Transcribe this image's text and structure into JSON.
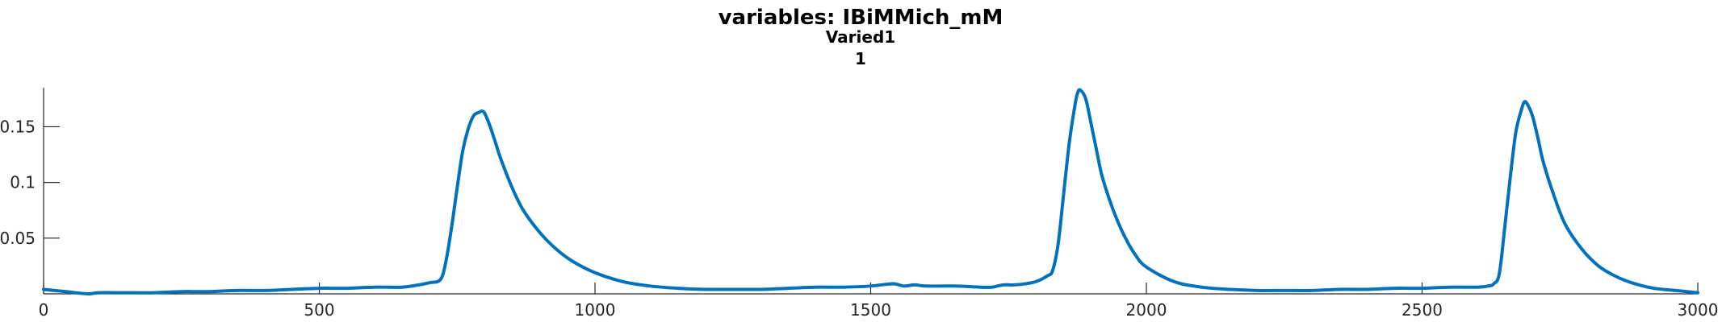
{
  "chart_data": {
    "type": "line",
    "title": "variables: IBiMMich_mM",
    "subtitle_lines": [
      "Varied1",
      "1"
    ],
    "xlabel": "",
    "ylabel": "",
    "xlim": [
      0,
      3000
    ],
    "ylim": [
      0.0,
      0.185
    ],
    "x_ticks": [
      0,
      500,
      1000,
      1500,
      2000,
      2500,
      3000
    ],
    "x_tick_labels": [
      "0",
      "500",
      "1000",
      "1500",
      "2000",
      "2500",
      "3000"
    ],
    "y_ticks": [
      0.05,
      0.1,
      0.15
    ],
    "y_tick_labels": [
      "0.05",
      "0.1",
      "0.15"
    ],
    "grid": false,
    "legend": "none",
    "series": [
      {
        "color": "#0072bd",
        "x": [
          0,
          40,
          80,
          100,
          150,
          200,
          250,
          300,
          350,
          400,
          450,
          500,
          550,
          600,
          650,
          680,
          700,
          720,
          730,
          740,
          750,
          760,
          770,
          780,
          790,
          795,
          800,
          810,
          820,
          830,
          850,
          870,
          900,
          930,
          960,
          1000,
          1050,
          1100,
          1150,
          1200,
          1250,
          1300,
          1350,
          1400,
          1450,
          1500,
          1540,
          1560,
          1580,
          1600,
          1650,
          1700,
          1720,
          1740,
          1760,
          1780,
          1800,
          1820,
          1830,
          1840,
          1850,
          1860,
          1870,
          1875,
          1880,
          1890,
          1900,
          1910,
          1920,
          1940,
          1960,
          1980,
          2000,
          2050,
          2100,
          2150,
          2200,
          2250,
          2300,
          2350,
          2400,
          2450,
          2500,
          2550,
          2600,
          2620,
          2630,
          2640,
          2650,
          2660,
          2670,
          2680,
          2685,
          2690,
          2700,
          2710,
          2720,
          2740,
          2760,
          2790,
          2820,
          2850,
          2880,
          2920,
          2960,
          3000
        ],
        "y": [
          0.004,
          0.002,
          0.0,
          0.001,
          0.001,
          0.001,
          0.002,
          0.002,
          0.003,
          0.003,
          0.004,
          0.005,
          0.005,
          0.006,
          0.006,
          0.008,
          0.01,
          0.013,
          0.03,
          0.06,
          0.095,
          0.128,
          0.148,
          0.16,
          0.163,
          0.164,
          0.162,
          0.15,
          0.135,
          0.12,
          0.095,
          0.075,
          0.055,
          0.04,
          0.029,
          0.019,
          0.011,
          0.007,
          0.005,
          0.004,
          0.004,
          0.004,
          0.005,
          0.006,
          0.006,
          0.007,
          0.009,
          0.007,
          0.008,
          0.007,
          0.007,
          0.006,
          0.006,
          0.008,
          0.008,
          0.009,
          0.011,
          0.016,
          0.021,
          0.045,
          0.09,
          0.135,
          0.168,
          0.18,
          0.183,
          0.175,
          0.152,
          0.128,
          0.105,
          0.075,
          0.052,
          0.035,
          0.024,
          0.011,
          0.006,
          0.004,
          0.003,
          0.003,
          0.003,
          0.004,
          0.004,
          0.005,
          0.005,
          0.006,
          0.006,
          0.007,
          0.009,
          0.018,
          0.06,
          0.105,
          0.145,
          0.165,
          0.172,
          0.171,
          0.16,
          0.14,
          0.118,
          0.087,
          0.062,
          0.04,
          0.025,
          0.016,
          0.01,
          0.005,
          0.003,
          0.001
        ]
      }
    ]
  }
}
